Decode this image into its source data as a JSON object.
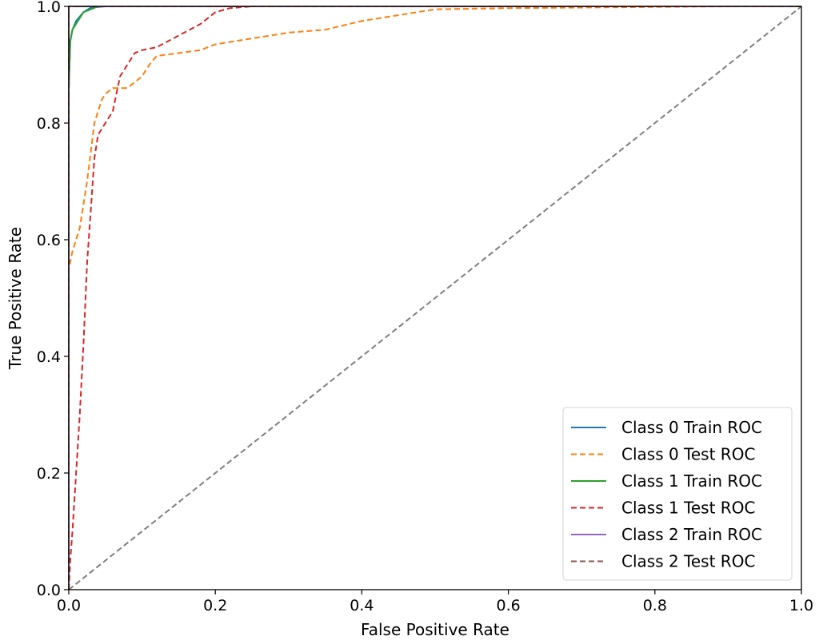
{
  "chart_data": {
    "type": "line",
    "title": "",
    "xlabel": "False Positive Rate",
    "ylabel": "True Positive Rate",
    "xlim": [
      0.0,
      1.0
    ],
    "ylim": [
      0.0,
      1.0
    ],
    "xticks": [
      "0.0",
      "0.2",
      "0.4",
      "0.6",
      "0.8",
      "1.0"
    ],
    "yticks": [
      "0.0",
      "0.2",
      "0.4",
      "0.6",
      "0.8",
      "1.0"
    ],
    "grid": false,
    "legend_position": "lower-right",
    "series": [
      {
        "name": "Class 0 Train ROC",
        "color": "#1f77b4",
        "dash": "solid",
        "x": [
          0.0,
          0.0,
          0.002,
          0.005,
          0.01,
          0.02,
          0.03,
          0.05,
          0.07,
          0.1,
          0.2,
          0.4,
          0.6,
          0.8,
          1.0
        ],
        "y": [
          0.0,
          0.86,
          0.94,
          0.96,
          0.975,
          0.99,
          0.998,
          1.0,
          1.0,
          1.0,
          1.0,
          1.0,
          1.0,
          1.0,
          1.0
        ]
      },
      {
        "name": "Class 0 Test ROC",
        "color": "#ff7f0e",
        "dash": "dashed",
        "x": [
          0.0,
          0.0,
          0.005,
          0.01,
          0.015,
          0.02,
          0.025,
          0.03,
          0.035,
          0.04,
          0.045,
          0.05,
          0.06,
          0.07,
          0.08,
          0.1,
          0.11,
          0.12,
          0.15,
          0.18,
          0.2,
          0.25,
          0.3,
          0.35,
          0.4,
          0.45,
          0.5,
          0.6,
          0.7,
          0.8,
          0.9,
          1.0
        ],
        "y": [
          0.0,
          0.55,
          0.58,
          0.6,
          0.62,
          0.66,
          0.7,
          0.75,
          0.8,
          0.82,
          0.84,
          0.85,
          0.86,
          0.86,
          0.86,
          0.88,
          0.9,
          0.915,
          0.92,
          0.925,
          0.935,
          0.945,
          0.955,
          0.96,
          0.975,
          0.985,
          0.995,
          0.997,
          0.998,
          0.999,
          1.0,
          1.0
        ]
      },
      {
        "name": "Class 1 Train ROC",
        "color": "#2ca02c",
        "dash": "solid",
        "x": [
          0.0,
          0.0,
          0.002,
          0.005,
          0.01,
          0.015,
          0.02,
          0.03,
          0.04,
          0.05,
          0.1,
          0.5,
          1.0
        ],
        "y": [
          0.0,
          0.86,
          0.94,
          0.96,
          0.97,
          0.98,
          0.99,
          0.995,
          1.0,
          1.0,
          1.0,
          1.0,
          1.0
        ]
      },
      {
        "name": "Class 1 Test ROC",
        "color": "#d62728",
        "dash": "dashed",
        "x": [
          0.0,
          0.002,
          0.005,
          0.01,
          0.015,
          0.02,
          0.025,
          0.03,
          0.035,
          0.04,
          0.05,
          0.06,
          0.07,
          0.08,
          0.09,
          0.1,
          0.12,
          0.15,
          0.18,
          0.2,
          0.22,
          0.25,
          0.3,
          0.5,
          0.8,
          1.0
        ],
        "y": [
          0.0,
          0.05,
          0.1,
          0.2,
          0.3,
          0.42,
          0.56,
          0.65,
          0.74,
          0.78,
          0.8,
          0.82,
          0.88,
          0.9,
          0.92,
          0.925,
          0.93,
          0.95,
          0.97,
          0.99,
          0.997,
          1.0,
          1.0,
          1.0,
          1.0,
          1.0
        ]
      },
      {
        "name": "Class 2 Train ROC",
        "color": "#9467bd",
        "dash": "solid",
        "x": [
          0.0,
          0.0,
          1.0
        ],
        "y": [
          0.0,
          1.0,
          1.0
        ]
      },
      {
        "name": "Class 2 Test ROC",
        "color": "#8c564b",
        "dash": "dashed",
        "x": [
          0.0,
          0.0,
          1.0
        ],
        "y": [
          0.0,
          1.0,
          1.0
        ]
      }
    ],
    "reference_line": {
      "color": "#7f7f7f",
      "dash": "dashed",
      "x": [
        0.0,
        1.0
      ],
      "y": [
        0.0,
        1.0
      ]
    }
  }
}
